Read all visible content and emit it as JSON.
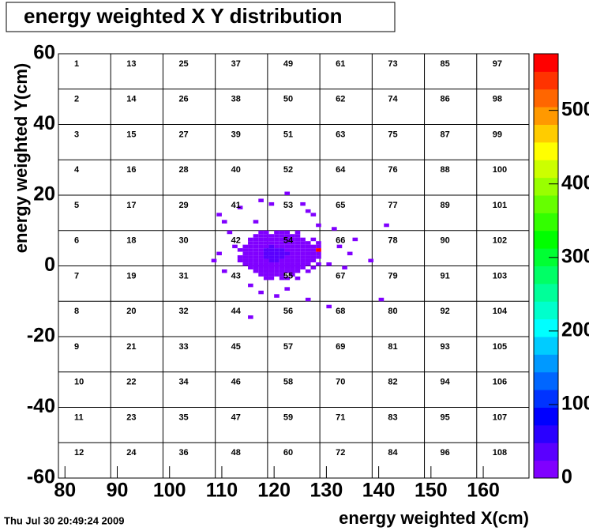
{
  "chart_data": {
    "type": "heatmap",
    "title": "energy weighted X Y distribution",
    "xlabel": "energy weighted X(cm)",
    "ylabel": "energy weighted Y(cm)",
    "timestamp": "Thu Jul 30 20:49:24 2009",
    "xlim": [
      78.75,
      168.75
    ],
    "ylim": [
      -60,
      60
    ],
    "xticks": [
      80,
      90,
      100,
      110,
      120,
      130,
      140,
      150,
      160
    ],
    "yticks": [
      -60,
      -40,
      -20,
      0,
      20,
      40,
      60
    ],
    "cell_xedges": [
      78.75,
      88.75,
      98.75,
      108.75,
      118.75,
      128.75,
      138.75,
      148.75,
      158.75,
      168.75
    ],
    "cell_yedges": [
      -60,
      -50,
      -40,
      -30,
      -20,
      -10,
      0,
      10,
      20,
      30,
      40,
      50,
      60
    ],
    "cell_labels": [
      [
        1,
        13,
        25,
        37,
        49,
        61,
        73,
        85,
        97
      ],
      [
        2,
        14,
        26,
        38,
        50,
        62,
        74,
        86,
        98
      ],
      [
        3,
        15,
        27,
        39,
        51,
        63,
        75,
        87,
        99
      ],
      [
        4,
        16,
        28,
        40,
        52,
        64,
        76,
        88,
        100
      ],
      [
        5,
        17,
        29,
        41,
        53,
        65,
        77,
        89,
        101
      ],
      [
        6,
        18,
        30,
        42,
        54,
        66,
        78,
        90,
        102
      ],
      [
        7,
        19,
        31,
        43,
        55,
        67,
        79,
        91,
        103
      ],
      [
        8,
        20,
        32,
        44,
        56,
        68,
        80,
        92,
        104
      ],
      [
        9,
        21,
        33,
        45,
        57,
        69,
        81,
        93,
        105
      ],
      [
        10,
        22,
        34,
        46,
        58,
        70,
        82,
        94,
        106
      ],
      [
        11,
        23,
        35,
        47,
        59,
        71,
        83,
        95,
        107
      ],
      [
        12,
        24,
        36,
        48,
        60,
        72,
        84,
        96,
        108
      ]
    ],
    "x_edges": [
      113,
      114,
      115,
      116,
      117,
      118,
      119,
      120,
      121,
      122,
      123,
      124,
      125,
      126,
      127,
      128,
      129,
      130,
      131
    ],
    "y_edges": [
      -4,
      -3,
      -2,
      -1,
      0,
      1,
      2,
      3,
      4,
      5,
      6,
      7,
      8,
      9,
      10
    ],
    "z": [
      [
        0,
        0,
        0,
        0,
        0,
        6,
        8,
        0,
        7,
        9,
        0,
        6,
        0,
        0,
        0,
        0,
        0,
        0
      ],
      [
        0,
        0,
        0,
        0,
        8,
        9,
        10,
        7,
        9,
        0,
        8,
        0,
        0,
        0,
        0,
        0,
        0,
        0
      ],
      [
        0,
        0,
        0,
        7,
        9,
        11,
        12,
        10,
        11,
        9,
        10,
        8,
        0,
        7,
        0,
        0,
        0,
        0
      ],
      [
        0,
        0,
        6,
        9,
        12,
        14,
        15,
        16,
        14,
        13,
        11,
        9,
        8,
        0,
        6,
        0,
        0,
        0
      ],
      [
        0,
        7,
        9,
        12,
        15,
        18,
        20,
        21,
        19,
        17,
        14,
        12,
        9,
        8,
        0,
        6,
        0,
        0
      ],
      [
        6,
        8,
        11,
        14,
        18,
        22,
        25,
        26,
        24,
        21,
        17,
        14,
        11,
        9,
        7,
        0,
        0,
        0
      ],
      [
        7,
        9,
        12,
        16,
        21,
        26,
        28,
        29,
        27,
        24,
        19,
        15,
        12,
        10,
        8,
        6,
        0,
        0
      ],
      [
        0,
        10,
        13,
        17,
        22,
        27,
        29,
        28,
        27,
        25,
        20,
        16,
        13,
        10,
        8,
        7,
        0,
        0
      ],
      [
        8,
        9,
        12,
        16,
        21,
        25,
        28,
        27,
        26,
        23,
        19,
        15,
        12,
        10,
        9,
        560,
        0,
        0
      ],
      [
        0,
        8,
        11,
        15,
        19,
        23,
        25,
        24,
        23,
        21,
        17,
        14,
        11,
        9,
        7,
        8,
        0,
        0
      ],
      [
        0,
        0,
        9,
        12,
        16,
        19,
        21,
        20,
        19,
        17,
        14,
        12,
        9,
        8,
        0,
        6,
        0,
        0
      ],
      [
        0,
        0,
        7,
        10,
        13,
        15,
        17,
        16,
        15,
        13,
        11,
        9,
        8,
        0,
        7,
        0,
        0,
        0
      ],
      [
        0,
        0,
        0,
        8,
        10,
        12,
        13,
        12,
        11,
        10,
        9,
        7,
        0,
        0,
        0,
        0,
        0,
        0
      ],
      [
        0,
        0,
        0,
        0,
        7,
        9,
        0,
        10,
        9,
        8,
        0,
        7,
        0,
        0,
        0,
        0,
        0,
        0
      ]
    ],
    "extra_bins": {
      "x": [
        109,
        110,
        113,
        117,
        122,
        119,
        125,
        126,
        127,
        116,
        128,
        131,
        135,
        141,
        138,
        132,
        134,
        130,
        133,
        108,
        110,
        115,
        117,
        120,
        122,
        126,
        130,
        115,
        140,
        112,
        111,
        109
      ],
      "y": [
        14,
        12,
        16,
        18,
        20,
        17,
        17,
        15,
        14,
        12,
        11,
        10,
        7,
        11,
        1,
        5,
        3,
        0,
        -1,
        1,
        -2,
        -6,
        -8,
        -9,
        -7,
        -10,
        -12,
        -15,
        -10,
        5,
        9,
        3
      ],
      "values": [
        7,
        6,
        8,
        7,
        9,
        7,
        8,
        6,
        7,
        8,
        6,
        7,
        6,
        7,
        8,
        6,
        7,
        8,
        6,
        7,
        6,
        8,
        7,
        6,
        7,
        8,
        6,
        7,
        6,
        8,
        7,
        6
      ]
    },
    "zlim": [
      0,
      577
    ],
    "zticks": [
      0,
      100,
      200,
      300,
      400,
      500
    ],
    "palette": [
      "#8000ff",
      "#5a00ff",
      "#2a00ff",
      "#0000ff",
      "#0033ff",
      "#0066ff",
      "#0099ff",
      "#00ccff",
      "#00ffff",
      "#00ffcc",
      "#00ff99",
      "#00ff66",
      "#00ff33",
      "#00ff00",
      "#33ff00",
      "#66ff00",
      "#99ff00",
      "#ccff00",
      "#ffff00",
      "#ffcc00",
      "#ff9900",
      "#ff6600",
      "#ff3300",
      "#ff0000"
    ]
  }
}
